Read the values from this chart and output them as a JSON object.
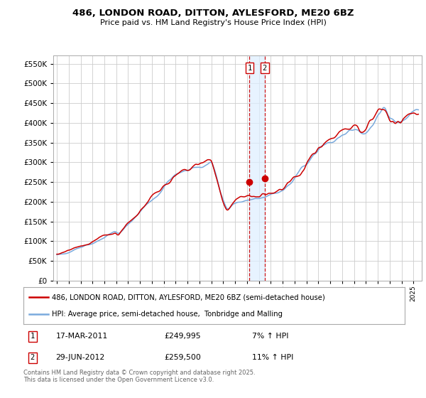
{
  "title1": "486, LONDON ROAD, DITTON, AYLESFORD, ME20 6BZ",
  "title2": "Price paid vs. HM Land Registry's House Price Index (HPI)",
  "ylim": [
    0,
    570000
  ],
  "ytick_values": [
    0,
    50000,
    100000,
    150000,
    200000,
    250000,
    300000,
    350000,
    400000,
    450000,
    500000,
    550000
  ],
  "line1_color": "#cc0000",
  "line2_color": "#7aaadd",
  "vline1_x": 2011.21,
  "vline2_x": 2012.49,
  "vline_color": "#cc0000",
  "shade_color": "#ddeeff",
  "legend1_label": "486, LONDON ROAD, DITTON, AYLESFORD, ME20 6BZ (semi-detached house)",
  "legend2_label": "HPI: Average price, semi-detached house,  Tonbridge and Malling",
  "sale1_date": "17-MAR-2011",
  "sale1_price": "£249,995",
  "sale1_hpi": "7% ↑ HPI",
  "sale2_date": "29-JUN-2012",
  "sale2_price": "£259,500",
  "sale2_hpi": "11% ↑ HPI",
  "footer": "Contains HM Land Registry data © Crown copyright and database right 2025.\nThis data is licensed under the Open Government Licence v3.0.",
  "bg_color": "#ffffff",
  "grid_color": "#cccccc",
  "xlim_start": 1994.7,
  "xlim_end": 2025.7
}
